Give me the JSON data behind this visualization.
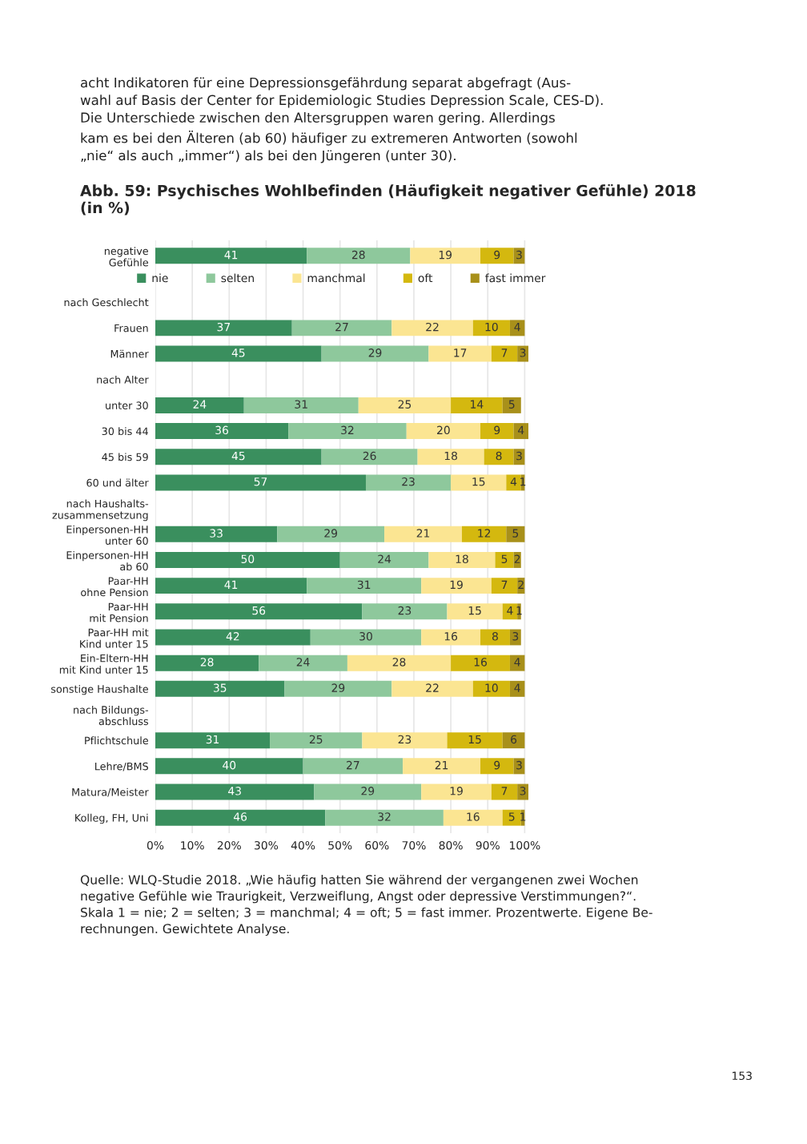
{
  "chart_data": {
    "type": "bar",
    "orientation": "horizontal",
    "stacked": true,
    "title": "Abb. 59: Psychisches Wohlbefinden (Häufigkeit negativer Gefühle) 2018\n(in %)",
    "categories": [
      "negative\nGefühle",
      "nach Geschlecht",
      "Frauen",
      "Männer",
      "nach Alter",
      "unter 30",
      "30 bis 44",
      "45 bis 59",
      "60 und älter",
      "nach Haushalts-\nzusammensetzung",
      "Einpersonen-HH\nunter 60",
      "Einpersonen-HH\nab 60",
      "Paar-HH\nohne Pension",
      "Paar-HH\nmit Pension",
      "Paar-HH mit\nKind unter 15",
      "Ein-Eltern-HH\nmit Kind unter 15",
      "sonstige Haushalte",
      "nach Bildungs-\nabschluss",
      "Pflichtschule",
      "Lehre/BMS",
      "Matura/Meister",
      "Kolleg, FH, Uni"
    ],
    "series": [
      {
        "name": "nie",
        "color": "#3a8f5e",
        "values": [
          41,
          null,
          37,
          45,
          null,
          24,
          36,
          45,
          57,
          null,
          33,
          50,
          41,
          56,
          42,
          28,
          35,
          null,
          31,
          40,
          43,
          46
        ]
      },
      {
        "name": "selten",
        "color": "#8ec89c",
        "values": [
          28,
          null,
          27,
          29,
          null,
          31,
          32,
          26,
          23,
          null,
          29,
          24,
          31,
          23,
          30,
          24,
          29,
          null,
          25,
          27,
          29,
          32
        ]
      },
      {
        "name": "manchmal",
        "color": "#fbe592",
        "values": [
          19,
          null,
          22,
          17,
          null,
          25,
          20,
          18,
          15,
          null,
          21,
          18,
          19,
          15,
          16,
          28,
          22,
          null,
          23,
          21,
          19,
          16
        ]
      },
      {
        "name": "oft",
        "color": "#d4b80f",
        "values": [
          9,
          null,
          10,
          7,
          null,
          14,
          9,
          8,
          4,
          null,
          12,
          5,
          7,
          4,
          8,
          16,
          10,
          null,
          15,
          9,
          7,
          5
        ]
      },
      {
        "name": "fast immer",
        "color": "#a8901a",
        "values": [
          3,
          null,
          4,
          3,
          null,
          5,
          4,
          3,
          1,
          null,
          5,
          2,
          2,
          1,
          3,
          4,
          4,
          null,
          6,
          3,
          3,
          1
        ]
      }
    ],
    "xlim": [
      0,
      101
    ],
    "xticks": [
      {
        "value": 0,
        "label": "0%"
      },
      {
        "value": 10,
        "label": "10%"
      },
      {
        "value": 20,
        "label": "20%"
      },
      {
        "value": 30,
        "label": "30%"
      },
      {
        "value": 40,
        "label": "40%"
      },
      {
        "value": 50,
        "label": "50%"
      },
      {
        "value": 60,
        "label": "60%"
      },
      {
        "value": 70,
        "label": "70%"
      },
      {
        "value": 80,
        "label": "80%"
      },
      {
        "value": 90,
        "label": "90%"
      },
      {
        "value": 100,
        "label": "100%"
      }
    ],
    "data_labels": true,
    "grid": "x",
    "legend": "top",
    "annotations": [
      "acht Indikatoren für eine Depressionsgefährdung separat abgefragt (Aus-\nwahl auf Basis der Center for Epidemiologic Studies Depression Scale, CES-D).\nDie Unterschiede zwischen den Altersgruppen waren gering. Allerdings\nkam es bei den Älteren (ab 60) häufiger zu extremeren Antworten (sowohl\n„nie“ als auch „immer“) als bei den Jüngeren (unter 30).",
      "Quelle: WLQ-Studie 2018. „Wie häufig hatten Sie während der vergangenen zwei Wochen\nnegative Gefühle wie Traurigkeit, Verzweiflung, Angst oder depressive Verstimmungen?“.\nSkala 1 = nie; 2 = selten; 3 = manchmal; 4 = oft; 5 = fast immer. Prozentwerte. Eigene Be-\nrechnungen. Gewichtete Analyse.",
      "153"
    ]
  }
}
